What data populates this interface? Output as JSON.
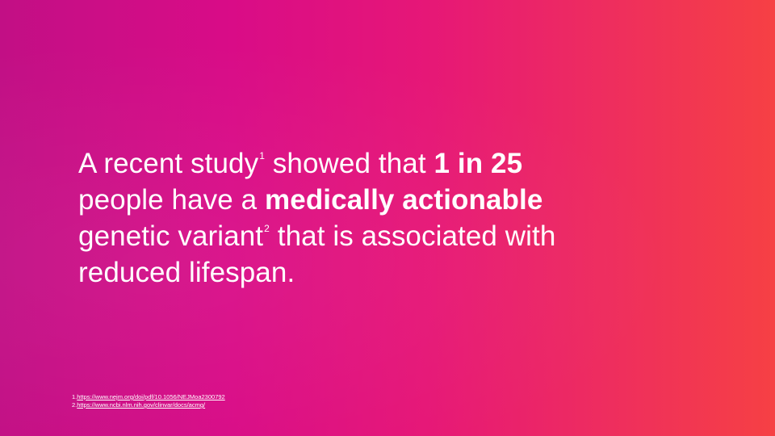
{
  "slide": {
    "background": {
      "gradient_start": "#c20f85",
      "gradient_mid": "#e61777",
      "gradient_end": "#f64044"
    },
    "statement": {
      "line1_prefix": "A recent study",
      "line1_ref": "1",
      "line1_mid": " showed that ",
      "line1_bold": "1 in 25",
      "line2_prefix": "people have a ",
      "line2_bold": "medically actionable",
      "line3_prefix": "genetic variant",
      "line3_ref": "2",
      "line3_suffix": " that is associated with",
      "line4": "reduced lifespan."
    },
    "footnotes": [
      {
        "number": "1.",
        "url": "https://www.nejm.org/doi/pdf/10.1056/NEJMoa2300792"
      },
      {
        "number": "2.",
        "url": "https://www.ncbi.nlm.nih.gov/clinvar/docs/acmg/"
      }
    ]
  }
}
